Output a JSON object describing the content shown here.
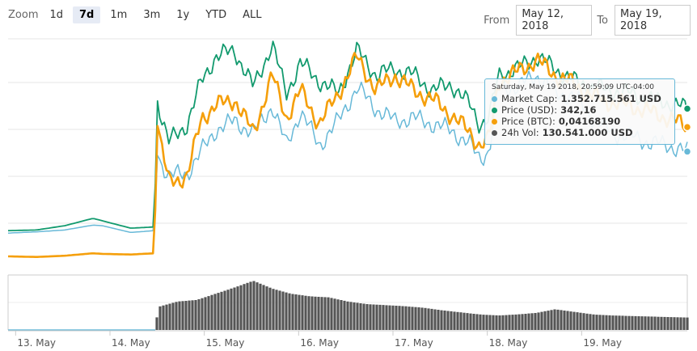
{
  "zoom": {
    "label": "Zoom",
    "buttons": [
      "1d",
      "7d",
      "1m",
      "3m",
      "1y",
      "YTD",
      "ALL"
    ],
    "active": "7d"
  },
  "range": {
    "from_label": "From",
    "from_value": "May 12, 2018",
    "to_label": "To",
    "to_value": "May 19, 2018"
  },
  "colors": {
    "market_cap": "#68b9d8",
    "price_usd": "#129a6e",
    "price_btc": "#f59f0b",
    "volume": "#555555"
  },
  "tooltip": {
    "title": "Saturday, May 19 2018, 20:59:09 UTC-04:00",
    "rows": [
      {
        "label": "Market Cap:",
        "value": "1.352.715.561 USD",
        "color": "#68b9d8"
      },
      {
        "label": "Price (USD):",
        "value": "342,16",
        "color": "#129a6e"
      },
      {
        "label": "Price (BTC):",
        "value": "0,04168190",
        "color": "#f59f0b"
      },
      {
        "label": "24h Vol:",
        "value": "130.541.000 USD",
        "color": "#555555"
      }
    ]
  },
  "chart_data": {
    "type": "line",
    "x_ticks": [
      "13. May",
      "14. May",
      "15. May",
      "16. May",
      "17. May",
      "18. May",
      "19. May"
    ],
    "x_range_days": [
      0,
      7.2
    ],
    "grid": true,
    "series": [
      {
        "key": "market_cap",
        "points": [
          [
            0,
            0.42
          ],
          [
            0.3,
            0.44
          ],
          [
            0.6,
            0.47
          ],
          [
            0.9,
            0.55
          ],
          [
            1.0,
            0.54
          ],
          [
            1.3,
            0.43
          ],
          [
            1.55,
            0.46
          ],
          [
            1.58,
            1.7
          ],
          [
            1.7,
            1.35
          ],
          [
            1.9,
            1.4
          ],
          [
            2.05,
            1.75
          ],
          [
            2.2,
            2.1
          ],
          [
            2.4,
            2.25
          ],
          [
            2.6,
            2.05
          ],
          [
            2.8,
            2.5
          ],
          [
            2.95,
            1.85
          ],
          [
            3.1,
            2.4
          ],
          [
            3.3,
            1.85
          ],
          [
            3.5,
            2.25
          ],
          [
            3.7,
            2.8
          ],
          [
            3.9,
            2.45
          ],
          [
            4.1,
            2.25
          ],
          [
            4.3,
            2.3
          ],
          [
            4.5,
            2.2
          ],
          [
            4.7,
            2.1
          ],
          [
            4.9,
            1.85
          ],
          [
            5.0,
            1.65
          ],
          [
            5.1,
            1.75
          ],
          [
            5.2,
            2.8
          ],
          [
            5.4,
            2.8
          ],
          [
            5.6,
            3.0
          ],
          [
            5.8,
            2.7
          ],
          [
            6.0,
            2.65
          ],
          [
            6.2,
            2.3
          ],
          [
            6.4,
            2.05
          ],
          [
            6.6,
            2.0
          ],
          [
            6.8,
            1.9
          ],
          [
            7.0,
            1.85
          ],
          [
            7.2,
            1.75
          ]
        ]
      },
      {
        "key": "price_usd",
        "points": [
          [
            0,
            0.46
          ],
          [
            0.3,
            0.47
          ],
          [
            0.6,
            0.54
          ],
          [
            0.9,
            0.66
          ],
          [
            1.0,
            0.62
          ],
          [
            1.3,
            0.5
          ],
          [
            1.55,
            0.52
          ],
          [
            1.58,
            2.6
          ],
          [
            1.7,
            1.9
          ],
          [
            1.9,
            2.2
          ],
          [
            2.05,
            2.9
          ],
          [
            2.2,
            3.3
          ],
          [
            2.4,
            3.4
          ],
          [
            2.6,
            2.8
          ],
          [
            2.8,
            3.5
          ],
          [
            2.95,
            2.7
          ],
          [
            3.1,
            3.2
          ],
          [
            3.3,
            2.9
          ],
          [
            3.5,
            2.7
          ],
          [
            3.7,
            3.4
          ],
          [
            3.9,
            3.0
          ],
          [
            4.1,
            3.1
          ],
          [
            4.3,
            3.0
          ],
          [
            4.5,
            2.75
          ],
          [
            4.7,
            2.85
          ],
          [
            4.9,
            2.5
          ],
          [
            5.0,
            2.2
          ],
          [
            5.1,
            2.3
          ],
          [
            5.2,
            3.0
          ],
          [
            5.4,
            3.1
          ],
          [
            5.6,
            3.3
          ],
          [
            5.8,
            3.1
          ],
          [
            6.0,
            2.9
          ],
          [
            6.2,
            2.8
          ],
          [
            6.4,
            2.75
          ],
          [
            6.6,
            2.7
          ],
          [
            6.8,
            2.6
          ],
          [
            7.0,
            2.55
          ],
          [
            7.2,
            2.45
          ]
        ]
      },
      {
        "key": "price_btc",
        "points": [
          [
            0,
            0.04
          ],
          [
            0.3,
            0.03
          ],
          [
            0.6,
            0.05
          ],
          [
            0.9,
            0.09
          ],
          [
            1.0,
            0.08
          ],
          [
            1.3,
            0.07
          ],
          [
            1.55,
            0.09
          ],
          [
            1.58,
            2.2
          ],
          [
            1.7,
            1.25
          ],
          [
            1.9,
            1.35
          ],
          [
            2.05,
            2.3
          ],
          [
            2.2,
            2.5
          ],
          [
            2.4,
            2.6
          ],
          [
            2.6,
            2.05
          ],
          [
            2.8,
            3.0
          ],
          [
            2.95,
            2.3
          ],
          [
            3.1,
            2.75
          ],
          [
            3.3,
            2.2
          ],
          [
            3.5,
            2.7
          ],
          [
            3.7,
            3.3
          ],
          [
            3.9,
            2.75
          ],
          [
            4.1,
            3.0
          ],
          [
            4.3,
            2.75
          ],
          [
            4.5,
            2.6
          ],
          [
            4.7,
            2.35
          ],
          [
            4.9,
            2.05
          ],
          [
            5.0,
            1.85
          ],
          [
            5.1,
            1.95
          ],
          [
            5.2,
            2.9
          ],
          [
            5.4,
            3.05
          ],
          [
            5.6,
            3.25
          ],
          [
            5.8,
            3.0
          ],
          [
            6.0,
            2.85
          ],
          [
            6.2,
            2.65
          ],
          [
            6.4,
            2.55
          ],
          [
            6.6,
            2.5
          ],
          [
            6.8,
            2.4
          ],
          [
            7.0,
            2.3
          ],
          [
            7.2,
            2.15
          ]
        ]
      },
      {
        "key": "volume",
        "points": [
          [
            0,
            0.0
          ],
          [
            1.55,
            0.0
          ],
          [
            1.6,
            0.45
          ],
          [
            1.8,
            0.55
          ],
          [
            2.0,
            0.58
          ],
          [
            2.2,
            0.7
          ],
          [
            2.4,
            0.82
          ],
          [
            2.6,
            0.95
          ],
          [
            2.8,
            0.8
          ],
          [
            3.0,
            0.7
          ],
          [
            3.2,
            0.65
          ],
          [
            3.4,
            0.63
          ],
          [
            3.6,
            0.55
          ],
          [
            3.8,
            0.5
          ],
          [
            4.0,
            0.48
          ],
          [
            4.2,
            0.46
          ],
          [
            4.4,
            0.43
          ],
          [
            4.6,
            0.38
          ],
          [
            4.8,
            0.34
          ],
          [
            5.0,
            0.3
          ],
          [
            5.2,
            0.28
          ],
          [
            5.4,
            0.3
          ],
          [
            5.6,
            0.33
          ],
          [
            5.8,
            0.4
          ],
          [
            6.0,
            0.35
          ],
          [
            6.2,
            0.3
          ],
          [
            6.4,
            0.28
          ],
          [
            6.6,
            0.27
          ],
          [
            6.8,
            0.26
          ],
          [
            7.0,
            0.25
          ],
          [
            7.2,
            0.24
          ]
        ]
      }
    ]
  }
}
